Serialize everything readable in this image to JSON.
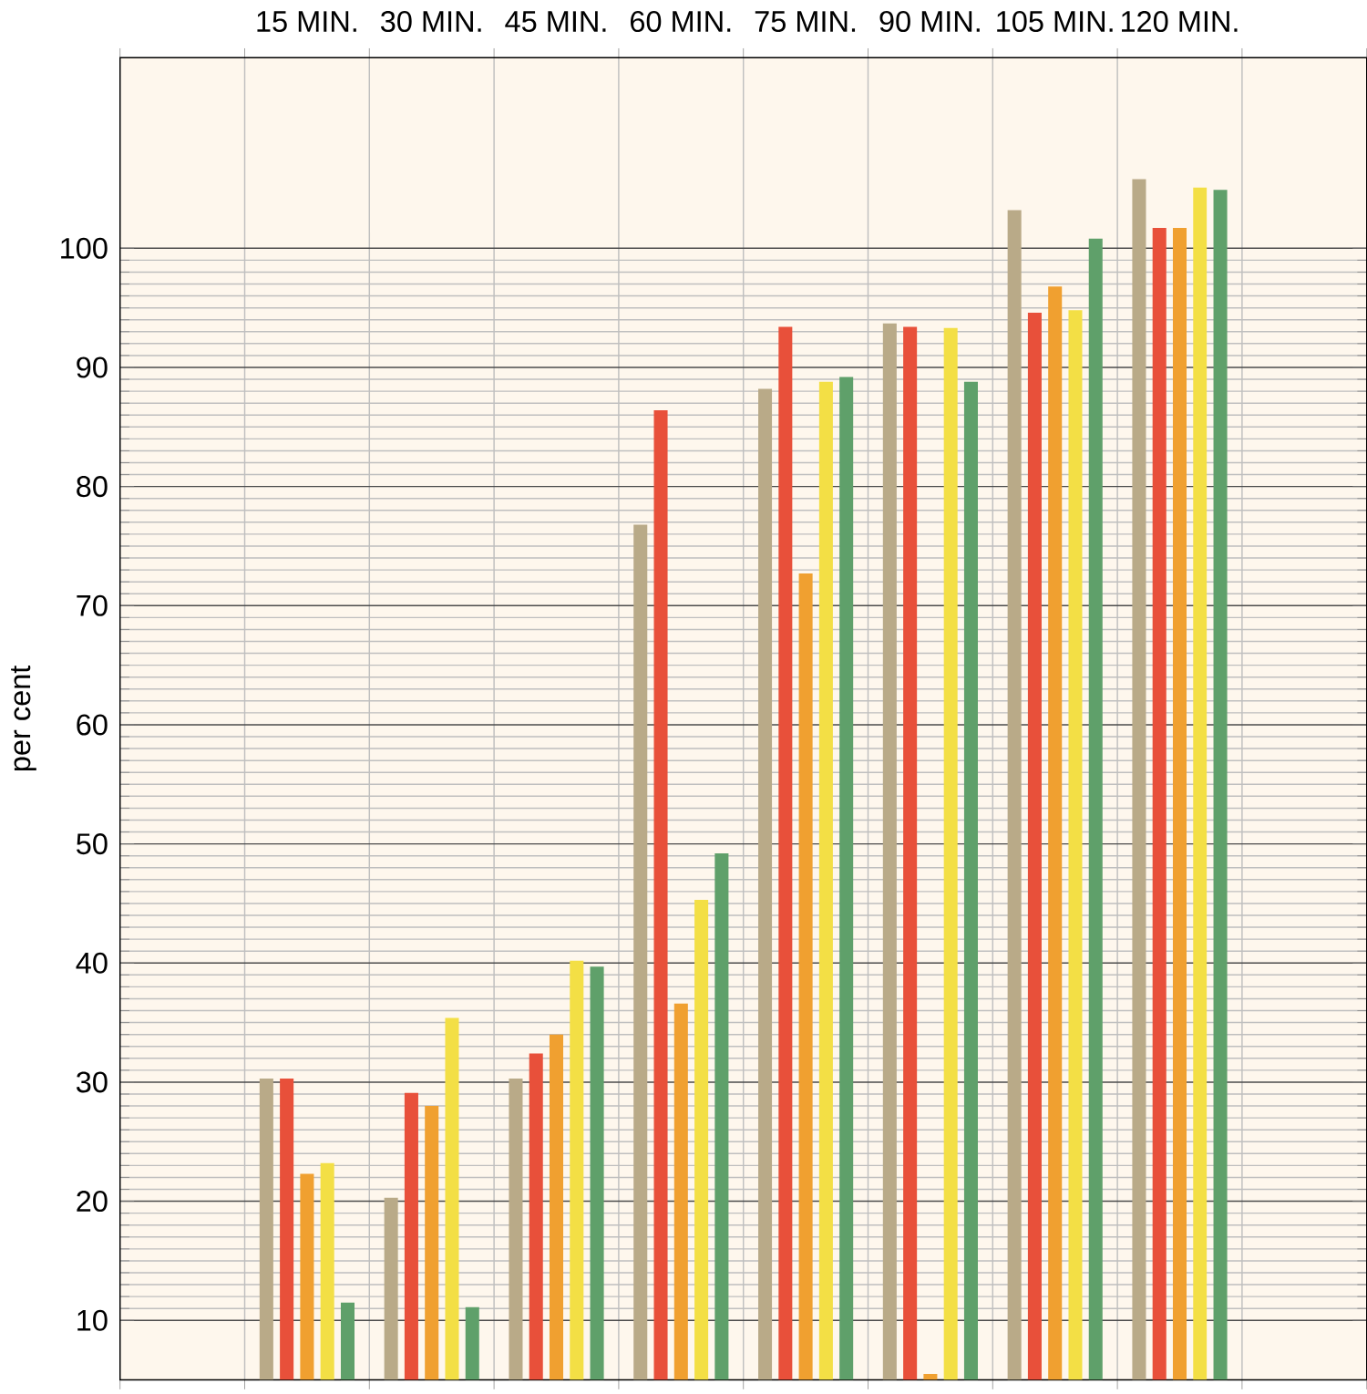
{
  "chart_data": {
    "type": "bar",
    "ylabel": "per cent",
    "categories": [
      null,
      "15 MIN.",
      "30 MIN.",
      "45 MIN.",
      "60 MIN.",
      "75 MIN.",
      "90 MIN.",
      "105 MIN.",
      "120 MIN.",
      null
    ],
    "series": [
      {
        "color": "#b9aa88",
        "values": [
          null,
          30.3,
          20.3,
          30.3,
          76.8,
          88.2,
          93.7,
          103.2,
          105.8,
          null
        ]
      },
      {
        "color": "#e8503a",
        "values": [
          null,
          30.3,
          29.1,
          32.4,
          86.4,
          93.4,
          93.4,
          94.6,
          101.7,
          null
        ]
      },
      {
        "color": "#f0a030",
        "values": [
          null,
          22.3,
          28.0,
          34.0,
          36.6,
          72.7,
          5.5,
          96.8,
          101.7,
          null
        ]
      },
      {
        "color": "#f3df45",
        "values": [
          null,
          23.2,
          35.4,
          40.2,
          45.3,
          88.8,
          93.3,
          94.8,
          105.1,
          null
        ]
      },
      {
        "color": "#5fa06a",
        "values": [
          null,
          11.5,
          11.1,
          39.7,
          49.2,
          89.2,
          88.8,
          100.8,
          104.9,
          null
        ]
      }
    ],
    "ylim": [
      5,
      116
    ],
    "yticks": [
      10,
      20,
      30,
      40,
      50,
      60,
      70,
      80,
      90,
      100
    ],
    "grid": true
  }
}
